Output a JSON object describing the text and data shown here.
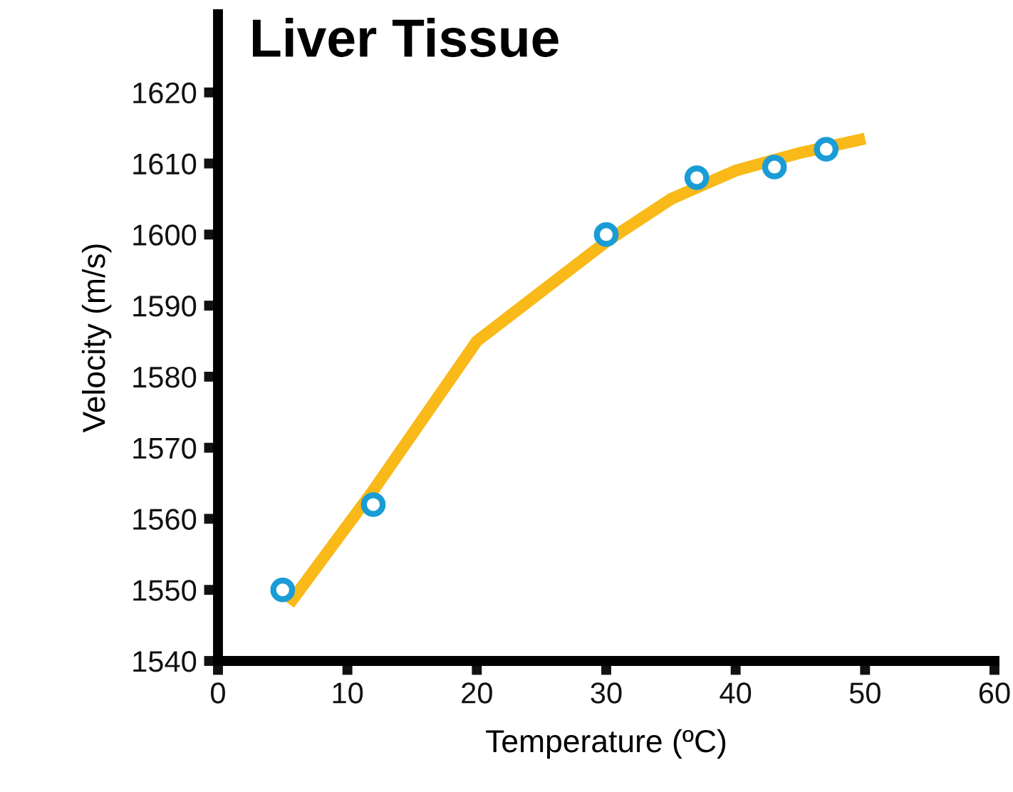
{
  "chart_data": {
    "type": "scatter",
    "title": "Liver Tissue",
    "xlabel": "Temperature (ºC)",
    "ylabel": "Velocity (m/s)",
    "xlim": [
      0,
      60
    ],
    "xticks": [
      0,
      10,
      20,
      30,
      40,
      50,
      60
    ],
    "ylim": [
      1540,
      1631
    ],
    "yticks": [
      1540,
      1550,
      1560,
      1570,
      1580,
      1590,
      1600,
      1610,
      1620
    ],
    "grid": false,
    "legend": false,
    "series": [
      {
        "type": "line",
        "color": "#f9b918",
        "marker": "none",
        "line_style": "solid",
        "x": [
          5.5,
          12,
          20,
          25,
          30,
          35,
          40,
          45,
          50
        ],
        "values": [
          1548,
          1564,
          1585,
          1592,
          1599,
          1605,
          1609,
          1611.5,
          1613.5
        ]
      },
      {
        "color": "#1a9cd6",
        "marker": "circle",
        "x": [
          5,
          12,
          30,
          37,
          43,
          47
        ],
        "values": [
          1550,
          1562,
          1600,
          1608,
          1609.5,
          1612
        ]
      }
    ]
  }
}
